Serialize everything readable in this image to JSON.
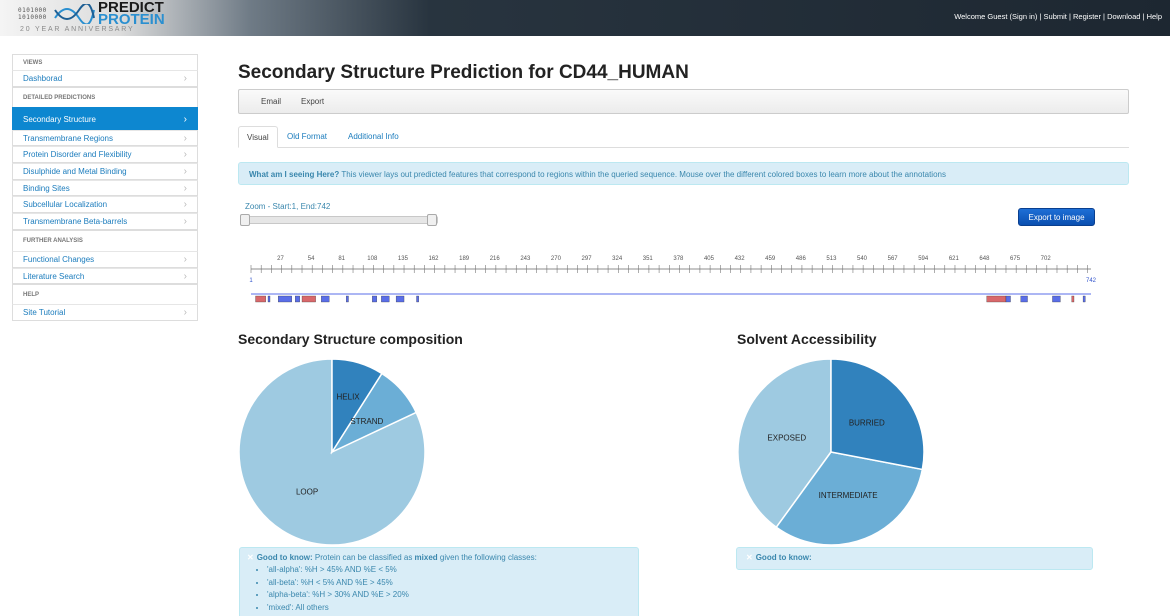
{
  "brand": {
    "binary": "0101000\n1010000",
    "line1": "PREDICT",
    "line2": "PROTEIN",
    "anniversary": "20 YEAR ANNIVERSARY"
  },
  "topnav": {
    "welcome": "Welcome Guest (Sign in)",
    "sep": " | ",
    "submit": "Submit",
    "register": "Register",
    "download": "Download",
    "help": "Help"
  },
  "sidebar": {
    "views_header": "VIEWS",
    "dashboard": "Dashborad",
    "detailed_header": "DETAILED PREDICTIONS",
    "detailed": [
      "Secondary Structure",
      "Transmembrane Regions",
      "Protein Disorder and Flexibility",
      "Disulphide and Metal Binding",
      "Binding Sites",
      "Subcellular Localization",
      "Transmembrane Beta-barrels"
    ],
    "further_header": "FURTHER ANALYSIS",
    "further": [
      "Functional Changes",
      "Literature Search"
    ],
    "help_header": "HELP",
    "help": [
      "Site Tutorial"
    ]
  },
  "main": {
    "title": "Secondary Structure Prediction for CD44_HUMAN",
    "toolbar": {
      "email": "Email",
      "export": "Export"
    },
    "tabs": [
      "Visual",
      "Old Format",
      "Additional Info"
    ],
    "info_bold": "What am I seeing Here?",
    "info_text": " This viewer lays out predicted features that correspond to regions within the queried sequence. Mouse over the different colored boxes to learn more about the annotations",
    "zoom_label": "Zoom - Start:1, End:742",
    "export_image": "Export to image"
  },
  "sequence_track": {
    "start": 1,
    "end": 742,
    "tick_labels": [
      27,
      54,
      81,
      108,
      135,
      162,
      189,
      216,
      243,
      270,
      297,
      324,
      351,
      378,
      405,
      432,
      459,
      486,
      513,
      540,
      567,
      594,
      621,
      648,
      675,
      702
    ],
    "strand_color": "#d9686b",
    "helix_color": "#5a6ee8",
    "features": [
      {
        "type": "strand",
        "start": 5,
        "end": 14
      },
      {
        "type": "helix",
        "start": 16,
        "end": 17
      },
      {
        "type": "helix",
        "start": 25,
        "end": 37
      },
      {
        "type": "helix",
        "start": 40,
        "end": 44
      },
      {
        "type": "strand",
        "start": 46,
        "end": 58
      },
      {
        "type": "helix",
        "start": 63,
        "end": 70
      },
      {
        "type": "helix",
        "start": 85,
        "end": 87
      },
      {
        "type": "helix",
        "start": 108,
        "end": 112
      },
      {
        "type": "helix",
        "start": 116,
        "end": 123
      },
      {
        "type": "helix",
        "start": 129,
        "end": 136
      },
      {
        "type": "helix",
        "start": 147,
        "end": 149
      },
      {
        "type": "strand",
        "start": 650,
        "end": 667
      },
      {
        "type": "helix",
        "start": 667,
        "end": 671
      },
      {
        "type": "helix",
        "start": 680,
        "end": 686
      },
      {
        "type": "helix",
        "start": 708,
        "end": 715
      },
      {
        "type": "strand",
        "start": 725,
        "end": 727
      },
      {
        "type": "helix",
        "start": 735,
        "end": 737
      }
    ]
  },
  "composition": {
    "title": "Secondary Structure composition",
    "good_bold": "Good to know:",
    "good_text1": " Protein can be classified as ",
    "good_mixed": "mixed",
    "good_text2": " given the following classes:",
    "classes": [
      "'all-alpha': %H > 45% AND %E < 5%",
      "'all-beta': %H < 5% AND %E > 45%",
      "'alpha-beta': %H > 30% AND %E > 20%",
      "'mixed': All others"
    ]
  },
  "accessibility": {
    "title": "Solvent Accessibility",
    "good_bold": "Good to know:"
  },
  "chart_data": [
    {
      "type": "pie",
      "title": "Secondary Structure composition",
      "labels": [
        "LOOP",
        "STRAND",
        "HELIX"
      ],
      "values": [
        82,
        9,
        9
      ],
      "colors": [
        "#9ecae1",
        "#6baed6",
        "#3182bd"
      ]
    },
    {
      "type": "pie",
      "title": "Solvent Accessibility",
      "labels": [
        "EXPOSED",
        "INTERMEDIATE",
        "BURRIED"
      ],
      "values": [
        40,
        32,
        28
      ],
      "colors": [
        "#9ecae1",
        "#6baed6",
        "#3182bd"
      ]
    }
  ]
}
